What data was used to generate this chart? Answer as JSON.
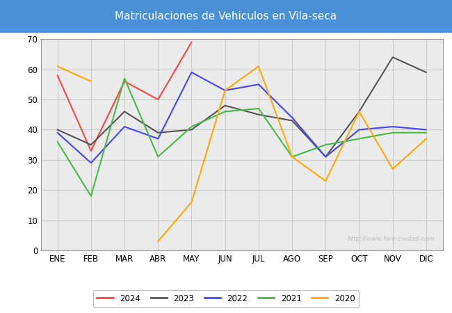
{
  "title": "Matriculaciones de Vehiculos en Vila-seca",
  "title_bg_color": "#4a90d9",
  "title_text_color": "white",
  "months": [
    "ENE",
    "FEB",
    "MAR",
    "ABR",
    "MAY",
    "JUN",
    "JUL",
    "AGO",
    "SEP",
    "OCT",
    "NOV",
    "DIC"
  ],
  "series": {
    "2024": {
      "color": "#ff4444",
      "data": [
        58,
        33,
        56,
        50,
        69,
        null,
        null,
        null,
        null,
        null,
        null,
        null
      ]
    },
    "2023": {
      "color": "#555555",
      "data": [
        40,
        35,
        46,
        39,
        40,
        48,
        45,
        43,
        31,
        46,
        64,
        59
      ]
    },
    "2022": {
      "color": "#4444ff",
      "data": [
        39,
        29,
        41,
        37,
        59,
        53,
        55,
        44,
        31,
        40,
        41,
        40
      ]
    },
    "2021": {
      "color": "#44bb44",
      "data": [
        36,
        18,
        57,
        31,
        41,
        46,
        47,
        31,
        35,
        37,
        39,
        39
      ]
    },
    "2020": {
      "color": "#ffaa00",
      "data": [
        61,
        56,
        null,
        3,
        16,
        53,
        61,
        31,
        23,
        46,
        27,
        37
      ]
    }
  },
  "ylim": [
    0,
    70
  ],
  "yticks": [
    0,
    10,
    20,
    30,
    40,
    50,
    60,
    70
  ],
  "grid_color": "#cccccc",
  "plot_bg_color": "#ebebeb",
  "watermark": "http://www.foro-ciudad.com",
  "legend_order": [
    "2024",
    "2023",
    "2022",
    "2021",
    "2020"
  ]
}
